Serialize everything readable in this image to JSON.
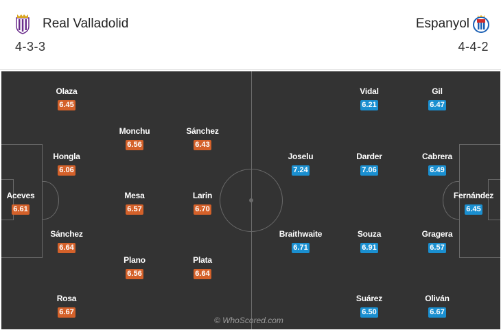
{
  "home": {
    "name": "Real Valladolid",
    "formation": "4-3-3",
    "color": "#d4612a",
    "crest_icon": "real-valladolid-crest",
    "players": [
      {
        "name": "Olaza",
        "rating": "6.45"
      },
      {
        "name": "Monchu",
        "rating": "6.56"
      },
      {
        "name": "Sánchez",
        "rating": "6.43"
      },
      {
        "name": "Hongla",
        "rating": "6.06"
      },
      {
        "name": "Aceves",
        "rating": "6.61"
      },
      {
        "name": "Mesa",
        "rating": "6.57"
      },
      {
        "name": "Larin",
        "rating": "6.70"
      },
      {
        "name": "Sánchez",
        "rating": "6.64"
      },
      {
        "name": "Plano",
        "rating": "6.56"
      },
      {
        "name": "Plata",
        "rating": "6.64"
      },
      {
        "name": "Rosa",
        "rating": "6.67"
      }
    ]
  },
  "away": {
    "name": "Espanyol",
    "formation": "4-4-2",
    "color": "#1a8fd0",
    "crest_icon": "espanyol-crest",
    "players": [
      {
        "name": "Vidal",
        "rating": "6.21"
      },
      {
        "name": "Gil",
        "rating": "6.47"
      },
      {
        "name": "Joselu",
        "rating": "7.24"
      },
      {
        "name": "Darder",
        "rating": "7.06"
      },
      {
        "name": "Cabrera",
        "rating": "6.49"
      },
      {
        "name": "Fernández",
        "rating": "6.45"
      },
      {
        "name": "Braithwaite",
        "rating": "6.71"
      },
      {
        "name": "Souza",
        "rating": "6.91"
      },
      {
        "name": "Gragera",
        "rating": "6.57"
      },
      {
        "name": "Suárez",
        "rating": "6.50"
      },
      {
        "name": "Oliván",
        "rating": "6.67"
      }
    ]
  },
  "pitch_color": "#333333",
  "watermark": "© WhoScored.com"
}
